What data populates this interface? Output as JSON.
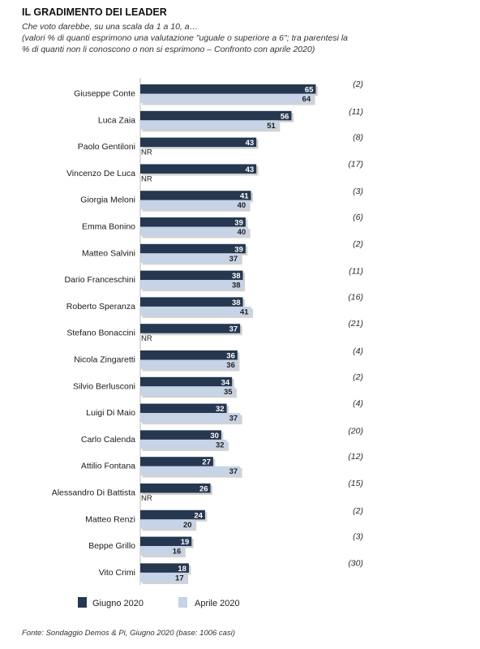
{
  "header": {
    "title": "IL GRADIMENTO DEI LEADER",
    "question": "Che voto darebbe, su una scala da 1 a 10, a…",
    "note_line1": "(valori % di quanti esprimono una valutazione \"uguale o superiore a 6\"; tra parentesi la",
    "note_line2": "% di quanti non li conoscono o non si esprimono – Confronto con aprile 2020)"
  },
  "colors": {
    "giugno": "#263750",
    "aprile": "#c7d3e6"
  },
  "chart_data": {
    "type": "bar",
    "orientation": "horizontal",
    "xlim": [
      0,
      100
    ],
    "grid": false,
    "legend_position": "bottom",
    "categories": [
      "Giuseppe Conte",
      "Luca Zaia",
      "Paolo Gentiloni",
      "Vincenzo De Luca",
      "Giorgia Meloni",
      "Emma Bonino",
      "Matteo Salvini",
      "Dario Franceschini",
      "Roberto Speranza",
      "Stefano Bonaccini",
      "Nicola Zingaretti",
      "Silvio Berlusconi",
      "Luigi Di Maio",
      "Carlo Calenda",
      "Attilio Fontana",
      "Alessandro Di Battista",
      "Matteo Renzi",
      "Beppe Grillo",
      "Vito Crimi"
    ],
    "series": [
      {
        "name": "Giugno 2020",
        "values": [
          65,
          56,
          43,
          43,
          41,
          39,
          39,
          38,
          38,
          37,
          36,
          34,
          32,
          30,
          27,
          26,
          24,
          19,
          18
        ]
      },
      {
        "name": "Aprile 2020",
        "values": [
          64,
          51,
          null,
          null,
          40,
          40,
          37,
          38,
          41,
          null,
          36,
          35,
          37,
          32,
          37,
          null,
          20,
          16,
          17
        ]
      }
    ],
    "missing_label": "NR",
    "non_si_esprimono": [
      "(2)",
      "(11)",
      "(8)",
      "(17)",
      "(3)",
      "(6)",
      "(2)",
      "(11)",
      "(16)",
      "(21)",
      "(4)",
      "(2)",
      "(4)",
      "(20)",
      "(12)",
      "(15)",
      "(2)",
      "(3)",
      "(30)"
    ]
  },
  "footer": {
    "source": "Fonte: Sondaggio Demos & Pi, Giugno 2020 (base: 1006 casi)"
  }
}
